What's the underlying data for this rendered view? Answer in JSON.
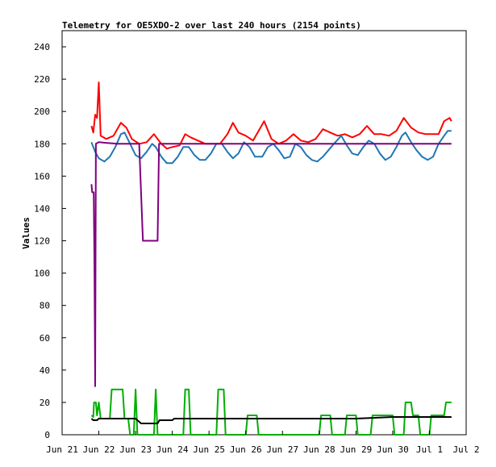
{
  "chart_data": {
    "type": "line",
    "title": "Telemetry for OE5XDO-2 over last 240 hours (2154 points)",
    "ylabel": "Values",
    "xlabel": "",
    "ylim": [
      0,
      250
    ],
    "xlim": [
      0,
      11
    ],
    "grid": false,
    "legend": "none",
    "y_ticks": [
      0,
      20,
      40,
      60,
      80,
      100,
      120,
      140,
      160,
      180,
      200,
      220,
      240
    ],
    "x_ticks": [
      {
        "x": 0,
        "label": "Jun 21"
      },
      {
        "x": 1,
        "label": "Jun 22"
      },
      {
        "x": 2,
        "label": "Jun 23"
      },
      {
        "x": 3,
        "label": "Jun 24"
      },
      {
        "x": 4,
        "label": "Jun 25"
      },
      {
        "x": 5,
        "label": "Jun 26"
      },
      {
        "x": 6,
        "label": "Jun 27"
      },
      {
        "x": 7,
        "label": "Jun 28"
      },
      {
        "x": 8,
        "label": "Jun 29"
      },
      {
        "x": 9,
        "label": "Jun 30"
      },
      {
        "x": 10,
        "label": "Jul 1"
      },
      {
        "x": 11,
        "label": "Jul 2"
      }
    ],
    "series": [
      {
        "color": "#ff0000",
        "points": [
          [
            0.8,
            191
          ],
          [
            0.85,
            187
          ],
          [
            0.9,
            198
          ],
          [
            0.95,
            196
          ],
          [
            1.0,
            218
          ],
          [
            1.05,
            185
          ],
          [
            1.2,
            183
          ],
          [
            1.4,
            185
          ],
          [
            1.6,
            193
          ],
          [
            1.75,
            190
          ],
          [
            1.9,
            183
          ],
          [
            2.1,
            180
          ],
          [
            2.3,
            181
          ],
          [
            2.5,
            186
          ],
          [
            2.7,
            180
          ],
          [
            2.85,
            177
          ],
          [
            3.0,
            178
          ],
          [
            3.2,
            179
          ],
          [
            3.35,
            186
          ],
          [
            3.5,
            184
          ],
          [
            3.7,
            182
          ],
          [
            3.9,
            180
          ],
          [
            4.1,
            180
          ],
          [
            4.3,
            180
          ],
          [
            4.5,
            186
          ],
          [
            4.65,
            193
          ],
          [
            4.8,
            187
          ],
          [
            5.0,
            185
          ],
          [
            5.2,
            182
          ],
          [
            5.35,
            188
          ],
          [
            5.5,
            194
          ],
          [
            5.7,
            183
          ],
          [
            5.9,
            180
          ],
          [
            6.1,
            182
          ],
          [
            6.3,
            186
          ],
          [
            6.5,
            182
          ],
          [
            6.7,
            181
          ],
          [
            6.9,
            183
          ],
          [
            7.1,
            189
          ],
          [
            7.3,
            187
          ],
          [
            7.5,
            185
          ],
          [
            7.7,
            186
          ],
          [
            7.9,
            184
          ],
          [
            8.1,
            186
          ],
          [
            8.3,
            191
          ],
          [
            8.5,
            186
          ],
          [
            8.7,
            186
          ],
          [
            8.9,
            185
          ],
          [
            9.1,
            188
          ],
          [
            9.3,
            196
          ],
          [
            9.5,
            190
          ],
          [
            9.7,
            187
          ],
          [
            9.9,
            186
          ],
          [
            10.1,
            186
          ],
          [
            10.25,
            186
          ],
          [
            10.4,
            194
          ],
          [
            10.55,
            196
          ],
          [
            10.6,
            194
          ]
        ]
      },
      {
        "color": "#1f77b4",
        "points": [
          [
            0.8,
            181
          ],
          [
            0.9,
            175
          ],
          [
            1.0,
            171
          ],
          [
            1.15,
            169
          ],
          [
            1.3,
            172
          ],
          [
            1.45,
            178
          ],
          [
            1.6,
            186
          ],
          [
            1.7,
            187
          ],
          [
            1.85,
            180
          ],
          [
            2.0,
            173
          ],
          [
            2.15,
            171
          ],
          [
            2.3,
            175
          ],
          [
            2.45,
            180
          ],
          [
            2.55,
            178
          ],
          [
            2.7,
            172
          ],
          [
            2.85,
            168
          ],
          [
            3.0,
            168
          ],
          [
            3.15,
            172
          ],
          [
            3.3,
            178
          ],
          [
            3.45,
            178
          ],
          [
            3.6,
            173
          ],
          [
            3.75,
            170
          ],
          [
            3.9,
            170
          ],
          [
            4.05,
            174
          ],
          [
            4.2,
            180
          ],
          [
            4.35,
            180
          ],
          [
            4.5,
            175
          ],
          [
            4.65,
            171
          ],
          [
            4.8,
            174
          ],
          [
            4.95,
            181
          ],
          [
            5.1,
            178
          ],
          [
            5.25,
            172
          ],
          [
            5.45,
            172
          ],
          [
            5.6,
            178
          ],
          [
            5.75,
            180
          ],
          [
            5.9,
            176
          ],
          [
            6.05,
            171
          ],
          [
            6.2,
            172
          ],
          [
            6.35,
            180
          ],
          [
            6.5,
            178
          ],
          [
            6.65,
            173
          ],
          [
            6.8,
            170
          ],
          [
            6.95,
            169
          ],
          [
            7.1,
            172
          ],
          [
            7.25,
            176
          ],
          [
            7.4,
            180
          ],
          [
            7.6,
            185
          ],
          [
            7.75,
            179
          ],
          [
            7.9,
            174
          ],
          [
            8.05,
            173
          ],
          [
            8.2,
            178
          ],
          [
            8.35,
            182
          ],
          [
            8.5,
            180
          ],
          [
            8.65,
            174
          ],
          [
            8.8,
            170
          ],
          [
            8.95,
            172
          ],
          [
            9.1,
            178
          ],
          [
            9.25,
            185
          ],
          [
            9.35,
            187
          ],
          [
            9.5,
            181
          ],
          [
            9.65,
            176
          ],
          [
            9.8,
            172
          ],
          [
            9.95,
            170
          ],
          [
            10.1,
            172
          ],
          [
            10.25,
            180
          ],
          [
            10.4,
            185
          ],
          [
            10.5,
            188
          ],
          [
            10.6,
            188
          ]
        ]
      },
      {
        "color": "#800080",
        "points": [
          [
            0.8,
            155
          ],
          [
            0.82,
            150
          ],
          [
            0.86,
            150
          ],
          [
            0.88,
            105
          ],
          [
            0.9,
            30
          ],
          [
            0.92,
            180
          ],
          [
            1.0,
            181
          ],
          [
            1.5,
            180
          ],
          [
            1.7,
            180
          ],
          [
            1.75,
            180
          ],
          [
            1.8,
            180
          ],
          [
            2.0,
            180
          ],
          [
            2.1,
            180
          ],
          [
            2.2,
            120
          ],
          [
            2.25,
            120
          ],
          [
            2.6,
            120
          ],
          [
            2.62,
            150
          ],
          [
            2.64,
            180
          ],
          [
            3.0,
            180
          ],
          [
            4.0,
            180
          ],
          [
            5.0,
            180
          ],
          [
            6.0,
            180
          ],
          [
            7.0,
            180
          ],
          [
            8.0,
            180
          ],
          [
            9.0,
            180
          ],
          [
            10.0,
            180
          ],
          [
            10.6,
            180
          ]
        ]
      },
      {
        "color": "#00b000",
        "points": [
          [
            0.8,
            12
          ],
          [
            0.85,
            11
          ],
          [
            0.87,
            20
          ],
          [
            0.92,
            20
          ],
          [
            0.95,
            12
          ],
          [
            1.0,
            20
          ],
          [
            1.05,
            10
          ],
          [
            1.3,
            10
          ],
          [
            1.35,
            28
          ],
          [
            1.65,
            28
          ],
          [
            1.7,
            10
          ],
          [
            1.8,
            10
          ],
          [
            1.85,
            0
          ],
          [
            1.95,
            0
          ],
          [
            2.0,
            28
          ],
          [
            2.05,
            0
          ],
          [
            2.5,
            0
          ],
          [
            2.55,
            28
          ],
          [
            2.6,
            0
          ],
          [
            3.3,
            0
          ],
          [
            3.35,
            28
          ],
          [
            3.45,
            28
          ],
          [
            3.5,
            0
          ],
          [
            4.2,
            0
          ],
          [
            4.25,
            28
          ],
          [
            4.4,
            28
          ],
          [
            4.45,
            0
          ],
          [
            5.0,
            0
          ],
          [
            5.05,
            12
          ],
          [
            5.3,
            12
          ],
          [
            5.35,
            0
          ],
          [
            7.0,
            0
          ],
          [
            7.05,
            12
          ],
          [
            7.3,
            12
          ],
          [
            7.35,
            0
          ],
          [
            7.7,
            0
          ],
          [
            7.75,
            12
          ],
          [
            8.0,
            12
          ],
          [
            8.05,
            0
          ],
          [
            8.4,
            0
          ],
          [
            8.45,
            12
          ],
          [
            9.0,
            12
          ],
          [
            9.05,
            0
          ],
          [
            9.3,
            0
          ],
          [
            9.35,
            20
          ],
          [
            9.5,
            20
          ],
          [
            9.55,
            12
          ],
          [
            9.7,
            12
          ],
          [
            9.75,
            0
          ],
          [
            10.0,
            0
          ],
          [
            10.05,
            12
          ],
          [
            10.4,
            12
          ],
          [
            10.45,
            20
          ],
          [
            10.6,
            20
          ]
        ]
      },
      {
        "color": "#000000",
        "points": [
          [
            0.8,
            10
          ],
          [
            0.85,
            9
          ],
          [
            0.95,
            9
          ],
          [
            1.0,
            10
          ],
          [
            1.5,
            10
          ],
          [
            2.0,
            10
          ],
          [
            2.15,
            7
          ],
          [
            2.6,
            7
          ],
          [
            2.65,
            9
          ],
          [
            3.0,
            9
          ],
          [
            3.05,
            10
          ],
          [
            4.0,
            10
          ],
          [
            5.0,
            10
          ],
          [
            6.0,
            10
          ],
          [
            7.0,
            10
          ],
          [
            8.0,
            10
          ],
          [
            9.0,
            11
          ],
          [
            9.5,
            11
          ],
          [
            10.0,
            11
          ],
          [
            10.6,
            11
          ]
        ]
      }
    ]
  }
}
